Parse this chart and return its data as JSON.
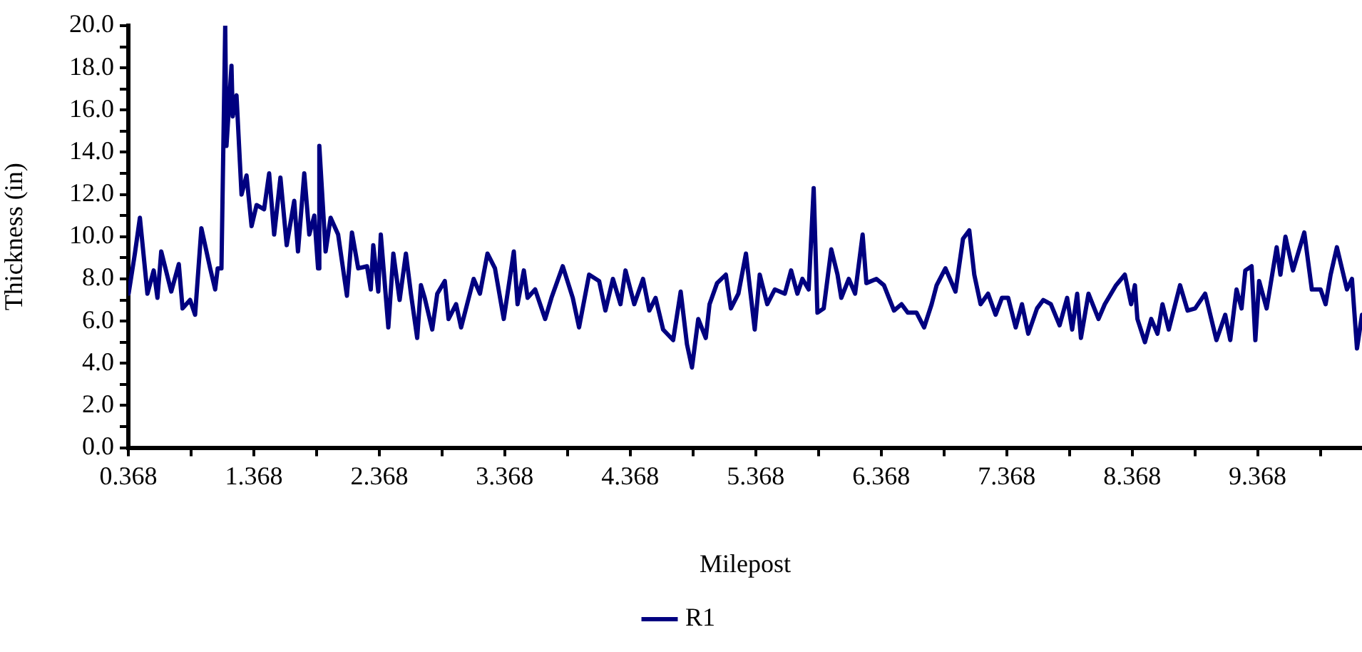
{
  "chart_data": {
    "type": "line",
    "xlabel": "Milepost",
    "ylabel": "Thickness (in)",
    "legend": "bottom",
    "marker": "none",
    "line_style": "solid",
    "xlim": [
      0.368,
      10.2
    ],
    "xticks": [
      0.368,
      {
        "value": 0.868,
        "label": null
      },
      1.368,
      {
        "value": 1.868,
        "label": null
      },
      2.368,
      {
        "value": 2.868,
        "label": null
      },
      3.368,
      {
        "value": 3.868,
        "label": null
      },
      4.368,
      {
        "value": 4.868,
        "label": null
      },
      5.368,
      {
        "value": 5.868,
        "label": null
      },
      6.368,
      {
        "value": 6.868,
        "label": null
      },
      7.368,
      {
        "value": 7.868,
        "label": null
      },
      8.368,
      {
        "value": 8.868,
        "label": null
      },
      9.368,
      {
        "value": 9.868,
        "label": null
      }
    ],
    "ylim": [
      0,
      20
    ],
    "yticks": [
      {
        "value": 0,
        "label": "0.0"
      },
      {
        "value": 1,
        "label": null
      },
      {
        "value": 2,
        "label": "2.0"
      },
      {
        "value": 3,
        "label": null
      },
      {
        "value": 4,
        "label": "4.0"
      },
      {
        "value": 5,
        "label": null
      },
      {
        "value": 6,
        "label": "6.0"
      },
      {
        "value": 7,
        "label": null
      },
      {
        "value": 8,
        "label": "8.0"
      },
      {
        "value": 9,
        "label": null
      },
      {
        "value": 10,
        "label": "10.0"
      },
      {
        "value": 11,
        "label": null
      },
      {
        "value": 12,
        "label": "12.0"
      },
      {
        "value": 13,
        "label": null
      },
      {
        "value": 14,
        "label": "14.0"
      },
      {
        "value": 15,
        "label": null
      },
      {
        "value": 16,
        "label": "16.0"
      },
      {
        "value": 17,
        "label": null
      },
      {
        "value": 18,
        "label": "18.0"
      },
      {
        "value": 19,
        "label": null
      },
      {
        "value": 20,
        "label": "20.0"
      }
    ],
    "series": [
      {
        "name": "R1",
        "color": "#000080",
        "x": [
          0.37,
          0.42,
          0.46,
          0.52,
          0.57,
          0.6,
          0.63,
          0.71,
          0.77,
          0.8,
          0.86,
          0.9,
          0.95,
          1.02,
          1.06,
          1.08,
          1.11,
          1.14,
          1.15,
          1.19,
          1.2,
          1.23,
          1.27,
          1.31,
          1.35,
          1.39,
          1.45,
          1.49,
          1.53,
          1.58,
          1.63,
          1.69,
          1.72,
          1.77,
          1.81,
          1.85,
          1.88,
          1.89,
          1.94,
          1.98,
          2.04,
          2.11,
          2.15,
          2.2,
          2.27,
          2.3,
          2.32,
          2.36,
          2.38,
          2.44,
          2.48,
          2.53,
          2.58,
          2.62,
          2.67,
          2.7,
          2.73,
          2.79,
          2.83,
          2.89,
          2.92,
          2.98,
          3.02,
          3.12,
          3.17,
          3.23,
          3.29,
          3.36,
          3.44,
          3.47,
          3.52,
          3.55,
          3.61,
          3.69,
          3.74,
          3.83,
          3.91,
          3.96,
          4.04,
          4.12,
          4.17,
          4.23,
          4.29,
          4.33,
          4.4,
          4.47,
          4.52,
          4.57,
          4.63,
          4.71,
          4.77,
          4.82,
          4.86,
          4.91,
          4.97,
          5.0,
          5.06,
          5.13,
          5.17,
          5.23,
          5.29,
          5.36,
          5.4,
          5.46,
          5.52,
          5.6,
          5.65,
          5.7,
          5.74,
          5.79,
          5.83,
          5.86,
          5.91,
          5.97,
          6.02,
          6.05,
          6.11,
          6.16,
          6.22,
          6.25,
          6.33,
          6.39,
          6.47,
          6.53,
          6.58,
          6.65,
          6.71,
          6.77,
          6.81,
          6.88,
          6.96,
          7.02,
          7.07,
          7.11,
          7.16,
          7.22,
          7.28,
          7.33,
          7.38,
          7.44,
          7.49,
          7.54,
          7.61,
          7.66,
          7.72,
          7.79,
          7.85,
          7.89,
          7.93,
          7.96,
          8.02,
          8.1,
          8.15,
          8.24,
          8.31,
          8.36,
          8.39,
          8.41,
          8.47,
          8.52,
          8.57,
          8.61,
          8.66,
          8.75,
          8.81,
          8.87,
          8.95,
          9.04,
          9.11,
          9.15,
          9.2,
          9.24,
          9.27,
          9.32,
          9.35,
          9.38,
          9.44,
          9.52,
          9.55,
          9.59,
          9.65,
          9.74,
          9.8,
          9.87,
          9.91,
          9.95,
          10.0,
          10.08,
          10.12,
          10.16,
          10.2
        ],
        "values": [
          7.3,
          9.2,
          10.9,
          7.3,
          8.4,
          7.1,
          9.3,
          7.4,
          8.7,
          6.6,
          7.0,
          6.3,
          10.4,
          8.5,
          7.5,
          8.5,
          8.5,
          20.0,
          14.3,
          18.1,
          15.7,
          16.7,
          12.0,
          12.9,
          10.5,
          11.5,
          11.3,
          13.0,
          10.1,
          12.8,
          9.6,
          11.7,
          9.3,
          13.0,
          10.1,
          11.0,
          8.5,
          14.3,
          9.3,
          10.9,
          10.1,
          7.2,
          10.2,
          8.5,
          8.6,
          7.5,
          9.6,
          7.4,
          10.1,
          5.7,
          9.2,
          7.0,
          9.2,
          7.3,
          5.2,
          7.7,
          7.1,
          5.6,
          7.3,
          7.9,
          6.1,
          6.8,
          5.7,
          8.0,
          7.3,
          9.2,
          8.5,
          6.1,
          9.3,
          6.8,
          8.4,
          7.1,
          7.5,
          6.1,
          7.1,
          8.6,
          7.1,
          5.7,
          8.2,
          7.9,
          6.5,
          8.0,
          6.8,
          8.4,
          6.8,
          8.0,
          6.5,
          7.1,
          5.6,
          5.1,
          7.4,
          4.9,
          3.8,
          6.1,
          5.2,
          6.8,
          7.8,
          8.2,
          6.6,
          7.3,
          9.2,
          5.6,
          8.2,
          6.8,
          7.5,
          7.3,
          8.4,
          7.3,
          8.0,
          7.5,
          12.3,
          6.4,
          6.6,
          9.4,
          8.2,
          7.1,
          8.0,
          7.3,
          10.1,
          7.8,
          8.0,
          7.7,
          6.5,
          6.8,
          6.4,
          6.4,
          5.7,
          6.8,
          7.7,
          8.5,
          7.4,
          9.9,
          10.3,
          8.2,
          6.8,
          7.3,
          6.3,
          7.1,
          7.1,
          5.7,
          6.8,
          5.4,
          6.6,
          7.0,
          6.8,
          5.8,
          7.1,
          5.6,
          7.3,
          5.2,
          7.3,
          6.1,
          6.8,
          7.7,
          8.2,
          6.8,
          7.7,
          6.1,
          5.0,
          6.1,
          5.4,
          6.8,
          5.6,
          7.7,
          6.5,
          6.6,
          7.3,
          5.1,
          6.3,
          5.1,
          7.5,
          6.6,
          8.4,
          8.6,
          5.1,
          7.9,
          6.6,
          9.5,
          8.2,
          10.0,
          8.4,
          10.2,
          7.5,
          7.5,
          6.8,
          8.2,
          9.5,
          7.5,
          8.0,
          4.7,
          6.3
        ]
      }
    ]
  }
}
